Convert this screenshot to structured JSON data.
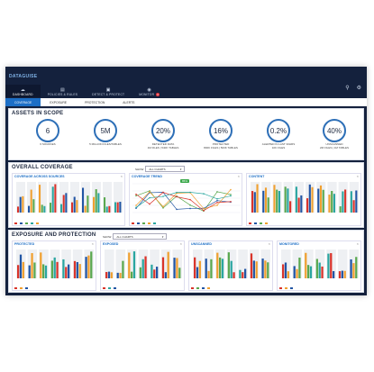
{
  "app": {
    "brand": "DATAGUISE"
  },
  "nav": {
    "items": [
      {
        "label": "DASHBOARD",
        "icon": "cloud-icon",
        "active": true
      },
      {
        "label": "POLICIES & RULES",
        "icon": "document-icon",
        "active": false
      },
      {
        "label": "DETECT & PROTECT",
        "icon": "lock-icon",
        "active": false
      },
      {
        "label": "MONITOR",
        "icon": "eye-icon",
        "active": false,
        "badge": "3"
      }
    ]
  },
  "tabs": [
    {
      "label": "COVERAGE",
      "active": true
    },
    {
      "label": "EXPOSURE",
      "active": false
    },
    {
      "label": "PROTECTION",
      "active": false
    },
    {
      "label": "ALERTS",
      "active": false
    }
  ],
  "assets": {
    "title": "ASSETS IN SCOPE",
    "kpis": [
      {
        "value": "6",
        "caption": "6 SOURCES"
      },
      {
        "value": "5M",
        "caption": "5 MILLION FILES/TABLES"
      },
      {
        "value": "20%",
        "caption": "DETECTED DATA\n1M FILES | 540K TABLES"
      },
      {
        "value": "16%",
        "caption": "PROTECTED\n800K FILES | 500K TABLES"
      },
      {
        "value": "0.2%",
        "caption": "ALERTED IN LAST 30HRS\n10K FILES"
      },
      {
        "value": "40%",
        "caption": "UNSCANNED\n2M FILES | 1M TABLES"
      }
    ]
  },
  "overall": {
    "title": "OVERALL COVERAGE",
    "show_label": "SHOW",
    "select_value": "ALL CHARTS",
    "cards": [
      {
        "title": "COVERAGE ACROSS SOURCES"
      },
      {
        "title": "COVERAGE TREND",
        "tooltip": "85%"
      },
      {
        "title": "CONTENT"
      }
    ]
  },
  "exposure": {
    "title": "EXPOSURE AND PROTECTION",
    "show_label": "SHOW",
    "select_value": "ALL CHARTS",
    "cards": [
      {
        "title": "PROTECTED"
      },
      {
        "title": "EXPOSED"
      },
      {
        "title": "UNSCANNED"
      },
      {
        "title": "MONITORED"
      }
    ]
  },
  "colors": {
    "blue": "#2255a4",
    "red": "#d9342b",
    "orange": "#f0a030",
    "green": "#5aa84f",
    "teal": "#2aa6a0",
    "navy": "#14213d"
  }
}
